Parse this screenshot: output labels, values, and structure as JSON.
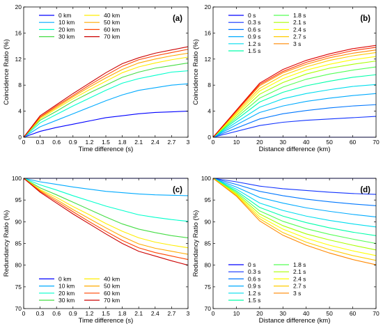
{
  "colors": {
    "time_series": [
      "#0000ff",
      "#00aaff",
      "#00ffcc",
      "#44dd44",
      "#ffee00",
      "#ffaa00",
      "#ff4400",
      "#cc0000"
    ],
    "dist_series": [
      "#0000ff",
      "#1133ff",
      "#0077ff",
      "#00aaff",
      "#00ddee",
      "#00ffaa",
      "#55ff55",
      "#aaff00",
      "#ffff00",
      "#ffcc00",
      "#ff8800",
      "#ff3300",
      "#dd0000"
    ]
  },
  "chart_data": [
    {
      "type": "line",
      "panel_label": "(a)",
      "xlabel": "Time difference (s)",
      "ylabel": "Coincidence Ratio (%)",
      "xlim": [
        0,
        3
      ],
      "ylim": [
        0,
        20
      ],
      "xticks": [
        "0",
        "0.3",
        "0.6",
        "0.9",
        "1.2",
        "1.5",
        "1.8",
        "2.1",
        "2.4",
        "2.7",
        "3"
      ],
      "yticks": [
        "0",
        "4",
        "8",
        "12",
        "16",
        "20"
      ],
      "legend_placement": "top-left",
      "legend_columns": 2,
      "x": [
        0,
        0.3,
        0.6,
        0.9,
        1.2,
        1.5,
        1.8,
        2.1,
        2.4,
        2.7,
        3
      ],
      "series": [
        {
          "name": "0 km",
          "values": [
            0,
            0.9,
            1.5,
            2.0,
            2.5,
            3.0,
            3.3,
            3.6,
            3.8,
            3.9,
            4.0
          ]
        },
        {
          "name": "10 km",
          "values": [
            0,
            1.6,
            2.6,
            3.6,
            4.6,
            5.6,
            6.5,
            7.2,
            7.6,
            8.0,
            8.2
          ]
        },
        {
          "name": "20 km",
          "values": [
            0,
            2.2,
            3.5,
            4.8,
            6.0,
            7.2,
            8.3,
            9.0,
            9.5,
            10.0,
            10.2
          ]
        },
        {
          "name": "30 km",
          "values": [
            0,
            2.6,
            4.0,
            5.5,
            6.8,
            8.0,
            9.2,
            10.0,
            10.6,
            11.0,
            11.4
          ]
        },
        {
          "name": "40 km",
          "values": [
            0,
            2.8,
            4.4,
            5.9,
            7.3,
            8.6,
            9.9,
            10.8,
            11.4,
            11.9,
            12.3
          ]
        },
        {
          "name": "50 km",
          "values": [
            0,
            3.0,
            4.6,
            6.2,
            7.7,
            9.1,
            10.4,
            11.4,
            12.0,
            12.5,
            12.9
          ]
        },
        {
          "name": "60 km",
          "values": [
            0,
            3.1,
            4.8,
            6.4,
            8.0,
            9.5,
            10.9,
            11.9,
            12.5,
            13.0,
            13.5
          ]
        },
        {
          "name": "70 km",
          "values": [
            0,
            3.3,
            5.0,
            6.7,
            8.3,
            9.9,
            11.3,
            12.2,
            12.9,
            13.4,
            13.9
          ]
        }
      ]
    },
    {
      "type": "line",
      "panel_label": "(b)",
      "xlabel": "Distance difference (km)",
      "ylabel": "Coincidence Ratio (%)",
      "xlim": [
        0,
        70
      ],
      "ylim": [
        0,
        20
      ],
      "xticks": [
        "0",
        "10",
        "20",
        "30",
        "40",
        "50",
        "60",
        "70"
      ],
      "yticks": [
        "0",
        "4",
        "8",
        "12",
        "16",
        "20"
      ],
      "legend_placement": "top-left",
      "legend_columns": 2,
      "x": [
        0,
        20,
        30,
        40,
        50,
        60,
        70
      ],
      "series": [
        {
          "name": "0 s",
          "values": [
            0,
            0,
            0,
            0,
            0,
            0,
            0
          ]
        },
        {
          "name": "0.3 s",
          "values": [
            0,
            1.8,
            2.3,
            2.6,
            2.8,
            3.0,
            3.2
          ]
        },
        {
          "name": "0.6 s",
          "values": [
            0,
            2.8,
            3.6,
            4.1,
            4.5,
            4.8,
            5.0
          ]
        },
        {
          "name": "0.9 s",
          "values": [
            0,
            3.8,
            4.8,
            5.5,
            6.0,
            6.4,
            6.7
          ]
        },
        {
          "name": "1.2 s",
          "values": [
            0,
            4.6,
            5.9,
            6.7,
            7.3,
            7.8,
            8.1
          ]
        },
        {
          "name": "1.5 s",
          "values": [
            0,
            5.4,
            6.9,
            7.9,
            8.6,
            9.2,
            9.6
          ]
        },
        {
          "name": "1.8 s",
          "values": [
            0,
            6.0,
            7.7,
            8.9,
            9.7,
            10.3,
            10.8
          ]
        },
        {
          "name": "2.1 s",
          "values": [
            0,
            6.6,
            8.4,
            9.7,
            10.6,
            11.2,
            11.7
          ]
        },
        {
          "name": "2.4 s",
          "values": [
            0,
            7.1,
            9.0,
            10.3,
            11.2,
            11.9,
            12.4
          ]
        },
        {
          "name": "2.7 s",
          "values": [
            0,
            7.5,
            9.5,
            10.8,
            11.8,
            12.5,
            13.0
          ]
        },
        {
          "name": "3 s",
          "values": [
            0,
            7.9,
            9.9,
            11.2,
            12.2,
            12.9,
            13.4
          ]
        },
        {
          "name": "",
          "values": [
            0,
            8.1,
            10.1,
            11.5,
            12.5,
            13.3,
            13.8
          ]
        },
        {
          "name": "",
          "values": [
            0,
            8.3,
            10.4,
            11.8,
            12.8,
            13.6,
            14.1
          ]
        }
      ]
    },
    {
      "type": "line",
      "panel_label": "(c)",
      "xlabel": "Time difference (s)",
      "ylabel": "Redundancy Ratio (%)",
      "xlim": [
        0,
        3
      ],
      "ylim": [
        70,
        100
      ],
      "xticks": [
        "0",
        "0.3",
        "0.6",
        "0.9",
        "1.2",
        "1.5",
        "1.8",
        "2.1",
        "2.4",
        "2.7",
        "3"
      ],
      "yticks": [
        "70",
        "75",
        "80",
        "85",
        "90",
        "95",
        "100"
      ],
      "legend_placement": "bottom-left",
      "legend_columns": 2,
      "x": [
        0,
        0.3,
        0.6,
        0.9,
        1.2,
        1.5,
        1.8,
        2.1,
        2.4,
        2.7,
        3
      ],
      "series": [
        {
          "name": "0 km",
          "values": [
            100,
            100,
            100,
            100,
            100,
            100,
            100,
            100,
            100,
            100,
            100
          ]
        },
        {
          "name": "10 km",
          "values": [
            100,
            99.2,
            98.6,
            98.0,
            97.5,
            97.0,
            96.7,
            96.4,
            96.2,
            96.1,
            96.0
          ]
        },
        {
          "name": "20 km",
          "values": [
            100,
            98.5,
            97.3,
            96.0,
            94.8,
            93.6,
            92.6,
            91.6,
            91.0,
            90.5,
            90.1
          ]
        },
        {
          "name": "30 km",
          "values": [
            100,
            97.8,
            96.2,
            94.5,
            92.8,
            91.1,
            89.5,
            88.3,
            87.5,
            86.8,
            86.3
          ]
        },
        {
          "name": "40 km",
          "values": [
            100,
            97.4,
            95.6,
            93.5,
            91.6,
            89.6,
            87.8,
            86.3,
            85.3,
            84.6,
            84.0
          ]
        },
        {
          "name": "50 km",
          "values": [
            100,
            97.2,
            95.1,
            92.8,
            90.7,
            88.6,
            86.6,
            84.9,
            83.9,
            83.2,
            82.5
          ]
        },
        {
          "name": "60 km",
          "values": [
            100,
            97.0,
            94.7,
            92.3,
            90.0,
            87.8,
            85.7,
            84.0,
            82.9,
            82.1,
            81.3
          ]
        },
        {
          "name": "70 km",
          "values": [
            100,
            96.8,
            94.3,
            91.8,
            89.5,
            87.2,
            85.0,
            83.2,
            82.1,
            81.0,
            80.0
          ]
        }
      ]
    },
    {
      "type": "line",
      "panel_label": "(d)",
      "xlabel": "Distance difference (km)",
      "ylabel": "Redundancy Ratio (%)",
      "xlim": [
        0,
        70
      ],
      "ylim": [
        70,
        100
      ],
      "xticks": [
        "0",
        "10",
        "20",
        "30",
        "40",
        "50",
        "60",
        "70"
      ],
      "yticks": [
        "70",
        "75",
        "80",
        "85",
        "90",
        "95",
        "100"
      ],
      "legend_placement": "bottom-left",
      "legend_columns": 2,
      "x": [
        0,
        10,
        20,
        30,
        40,
        50,
        60,
        70
      ],
      "series": [
        {
          "name": "0 s",
          "values": [
            100,
            100,
            100,
            100,
            100,
            100,
            100,
            100
          ]
        },
        {
          "name": "0.3 s",
          "values": [
            100,
            99.2,
            98.2,
            97.6,
            97.2,
            96.8,
            96.5,
            96.3
          ]
        },
        {
          "name": "0.6 s",
          "values": [
            100,
            98.6,
            97.0,
            96.0,
            95.2,
            94.6,
            94.1,
            93.7
          ]
        },
        {
          "name": "0.9 s",
          "values": [
            100,
            98.0,
            95.6,
            94.3,
            93.2,
            92.4,
            91.7,
            91.1
          ]
        },
        {
          "name": "1.2 s",
          "values": [
            100,
            97.5,
            94.3,
            92.6,
            91.3,
            90.3,
            89.5,
            88.8
          ]
        },
        {
          "name": "1.5 s",
          "values": [
            100,
            97.1,
            93.3,
            91.3,
            89.8,
            88.6,
            87.6,
            86.8
          ]
        },
        {
          "name": "1.8 s",
          "values": [
            100,
            96.8,
            92.5,
            90.1,
            88.4,
            87.1,
            86.0,
            85.0
          ]
        },
        {
          "name": "2.1 s",
          "values": [
            100,
            96.5,
            91.8,
            89.1,
            87.2,
            85.8,
            84.6,
            83.5
          ]
        },
        {
          "name": "2.4 s",
          "values": [
            100,
            96.3,
            91.2,
            88.3,
            86.2,
            84.6,
            83.3,
            82.2
          ]
        },
        {
          "name": "2.7 s",
          "values": [
            100,
            96.1,
            90.7,
            87.5,
            85.3,
            83.6,
            82.2,
            81.1
          ]
        },
        {
          "name": "3 s",
          "values": [
            100,
            95.9,
            90.2,
            86.9,
            84.6,
            82.8,
            81.3,
            80.1
          ]
        }
      ]
    }
  ]
}
